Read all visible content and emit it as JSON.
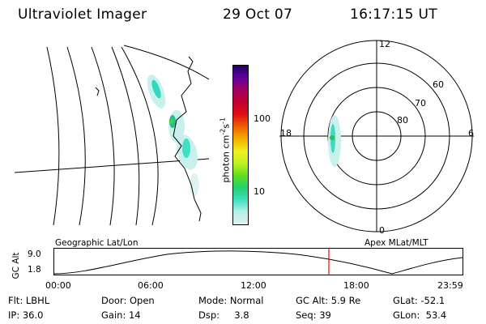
{
  "header": {
    "title": "Ultraviolet Imager",
    "date": "29 Oct 07",
    "time": "16:17:15 UT"
  },
  "colorbar": {
    "label": "photon cm",
    "label_exp1": "-2",
    "label_mid": "s",
    "label_exp2": "-1",
    "ticks": [
      "100",
      "10"
    ],
    "scale": "log",
    "colors": [
      "#e0f0f0",
      "#b8f0e8",
      "#40e0c0",
      "#20d070",
      "#60e020",
      "#c0f020",
      "#f0f020",
      "#f0b000",
      "#f06000",
      "#e01010",
      "#c00030",
      "#a00060",
      "#6000a0",
      "#200060"
    ]
  },
  "polar": {
    "mlt_labels": [
      "12",
      "18",
      "6",
      "0"
    ],
    "mlat_labels": [
      "60",
      "70",
      "80"
    ]
  },
  "orbit": {
    "axis_label": "GC Alt",
    "left_label": "Geographic Lat/Lon",
    "right_label": "Apex MLat/MLT",
    "y_ticks": [
      "9.0",
      "1.8"
    ],
    "x_ticks": [
      "00:00",
      "06:00",
      "12:00",
      "18:00",
      "23:59"
    ],
    "current_marker_color": "#ff0000"
  },
  "info": {
    "flt": "Flt: LBHL",
    "ip": "IP: 36.0",
    "door": "Door: Open",
    "gain": "Gain: 14",
    "mode": "Mode: Normal",
    "dsp": "Dsp:     3.8",
    "gc_alt": "GC Alt: 5.9 Re",
    "seq": "Seq: 39",
    "glat": "GLat: -52.1",
    "glon": "GLon:  53.4"
  }
}
